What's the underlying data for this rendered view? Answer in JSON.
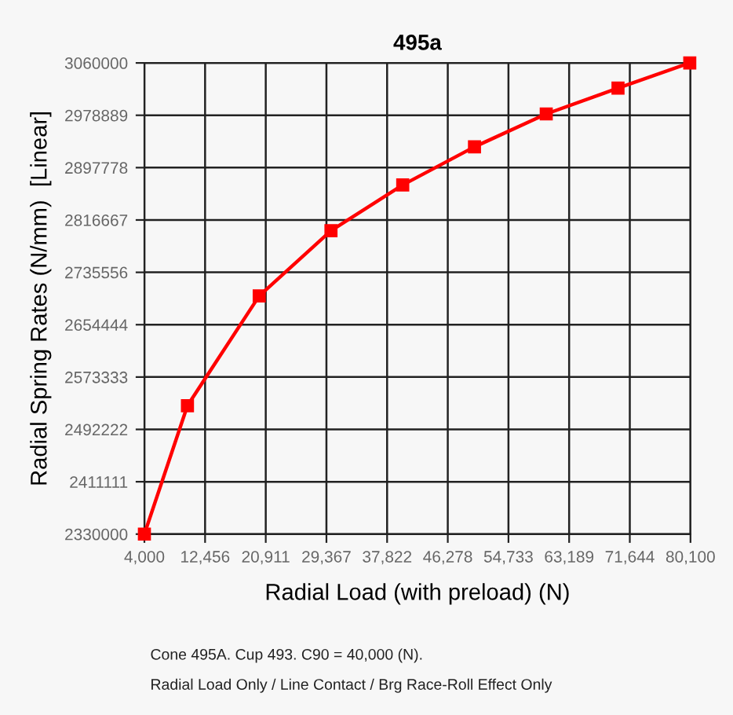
{
  "chart_data": {
    "type": "line",
    "title": "495a",
    "xlabel": "Radial Load (with preload) (N)",
    "ylabel": "Radial Spring Rates (N/mm)  [Linear]",
    "x": [
      4000,
      10000,
      20000,
      30000,
      40000,
      50000,
      60000,
      70000,
      80000
    ],
    "series": [
      {
        "color": "#ff0000",
        "values": [
          2330000,
          2529000,
          2699000,
          2800000,
          2871000,
          2930000,
          2981000,
          3021000,
          3060000
        ]
      }
    ],
    "marker": "square",
    "line_style": "solid",
    "grid": true,
    "xlim": [
      4000,
      80100
    ],
    "xticks": [
      {
        "value": 4000,
        "label": "4,000"
      },
      {
        "value": 12456,
        "label": "12,456"
      },
      {
        "value": 20911,
        "label": "20,911"
      },
      {
        "value": 29367,
        "label": "29,367"
      },
      {
        "value": 37822,
        "label": "37,822"
      },
      {
        "value": 46278,
        "label": "46,278"
      },
      {
        "value": 54733,
        "label": "54,733"
      },
      {
        "value": 63189,
        "label": "63,189"
      },
      {
        "value": 71644,
        "label": "71,644"
      },
      {
        "value": 80100,
        "label": "80,100"
      }
    ],
    "ylim": [
      2330000,
      3060000
    ],
    "yticks": [
      2330000,
      2411111,
      2492222,
      2573333,
      2654444,
      2735556,
      2816667,
      2897778,
      2978889,
      3060000
    ],
    "annotations": [
      "Cone 495A. Cup 493. C90 = 40,000 (N).",
      "Radial Load Only / Line Contact / Brg Race-Roll Effect Only"
    ]
  }
}
